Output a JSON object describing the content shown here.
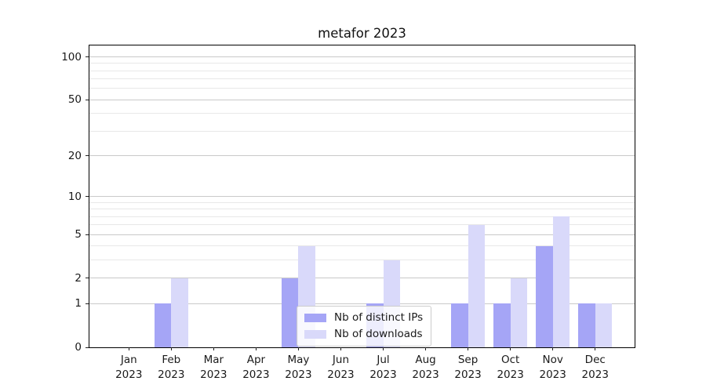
{
  "title": "metafor 2023",
  "chart_data": {
    "type": "bar",
    "title": "metafor 2023",
    "month_labels": [
      "Jan",
      "Feb",
      "Mar",
      "Apr",
      "May",
      "Jun",
      "Jul",
      "Aug",
      "Sep",
      "Oct",
      "Nov",
      "Dec"
    ],
    "year_label": "2023",
    "categories": [
      "Jan 2023",
      "Feb 2023",
      "Mar 2023",
      "Apr 2023",
      "May 2023",
      "Jun 2023",
      "Jul 2023",
      "Aug 2023",
      "Sep 2023",
      "Oct 2023",
      "Nov 2023",
      "Dec 2023"
    ],
    "series": [
      {
        "name": "Nb of distinct IPs",
        "color": "#a5a5f6",
        "values": [
          0,
          1,
          0,
          0,
          2,
          0,
          1,
          0,
          1,
          1,
          4,
          1
        ]
      },
      {
        "name": "Nb of downloads",
        "color": "#d9d9fa",
        "values": [
          0,
          2,
          0,
          0,
          4,
          0,
          3,
          0,
          6,
          2,
          7,
          1
        ]
      }
    ],
    "y_scale": "log10(1+y)",
    "ylim": [
      0,
      120
    ],
    "y_major_ticks": [
      0,
      1,
      2,
      5,
      10,
      20,
      50,
      100
    ],
    "y_minor_gridlines": [
      3,
      4,
      6,
      7,
      8,
      9,
      30,
      40,
      60,
      70,
      80,
      90
    ],
    "xlim": [
      -0.93,
      11.93
    ],
    "bar_width": 0.4,
    "grid": "horizontal major+minor",
    "legend_position": "inside lower-center"
  },
  "colors": {
    "bar_dark": "#a5a5f6",
    "bar_light": "#d9d9fa",
    "major_grid": "#c9c9c9",
    "minor_grid": "#e8e8e8",
    "spine": "#000000",
    "legend_border": "#cccccc",
    "text": "#1a1a1a"
  }
}
